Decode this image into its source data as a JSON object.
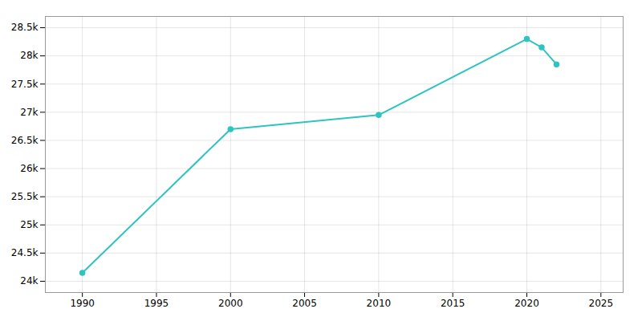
{
  "chart_data": {
    "type": "line",
    "x": [
      1990,
      2000,
      2010,
      2020,
      2021,
      2022
    ],
    "values": [
      24148,
      26700,
      26950,
      28300,
      28150,
      27850
    ],
    "color": "#2EC4C0",
    "marker": "circle",
    "xlim": [
      1987.5,
      2026.5
    ],
    "xticks": [
      1990,
      1995,
      2000,
      2005,
      2010,
      2015,
      2020,
      2025
    ],
    "ylim": [
      23800,
      28700
    ],
    "yticks": [
      {
        "value": 24000,
        "label": "24k"
      },
      {
        "value": 24500,
        "label": "24.5k"
      },
      {
        "value": 25000,
        "label": "25k"
      },
      {
        "value": 25500,
        "label": "25.5k"
      },
      {
        "value": 26000,
        "label": "26k"
      },
      {
        "value": 26500,
        "label": "26.5k"
      },
      {
        "value": 27000,
        "label": "27k"
      },
      {
        "value": 27500,
        "label": "27.5k"
      },
      {
        "value": 28000,
        "label": "28k"
      },
      {
        "value": 28500,
        "label": "28.5k"
      }
    ],
    "grid": true
  }
}
